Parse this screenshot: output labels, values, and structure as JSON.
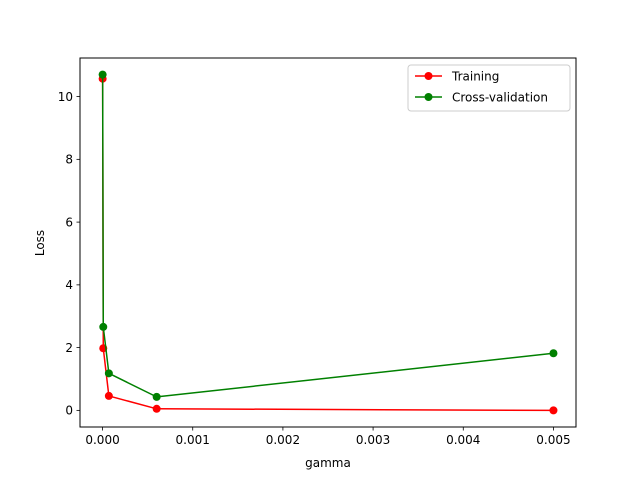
{
  "chart_data": {
    "type": "line",
    "title": "",
    "xlabel": "gamma",
    "ylabel": "Loss",
    "xlim": [
      -0.00025,
      0.00525
    ],
    "ylim": [
      -0.53,
      11.23
    ],
    "x_ticks": [
      0.0,
      0.001,
      0.002,
      0.003,
      0.004,
      0.005
    ],
    "x_tick_labels": [
      "0.000",
      "0.001",
      "0.002",
      "0.003",
      "0.004",
      "0.005"
    ],
    "y_ticks": [
      0,
      2,
      4,
      6,
      8,
      10
    ],
    "y_tick_labels": [
      "0",
      "2",
      "4",
      "6",
      "8",
      "10"
    ],
    "grid": false,
    "legend_position": "top-right",
    "series": [
      {
        "name": "Training",
        "color": "#ff0000",
        "marker": "circle",
        "x": [
          1e-06,
          8e-06,
          7e-05,
          0.0006,
          0.005
        ],
        "y": [
          10.57,
          1.98,
          0.46,
          0.05,
          0.0
        ]
      },
      {
        "name": "Cross-validation",
        "color": "#008000",
        "marker": "circle",
        "x": [
          1e-06,
          8e-06,
          7e-05,
          0.0006,
          0.005
        ],
        "y": [
          10.7,
          2.66,
          1.18,
          0.43,
          1.82
        ]
      }
    ]
  }
}
